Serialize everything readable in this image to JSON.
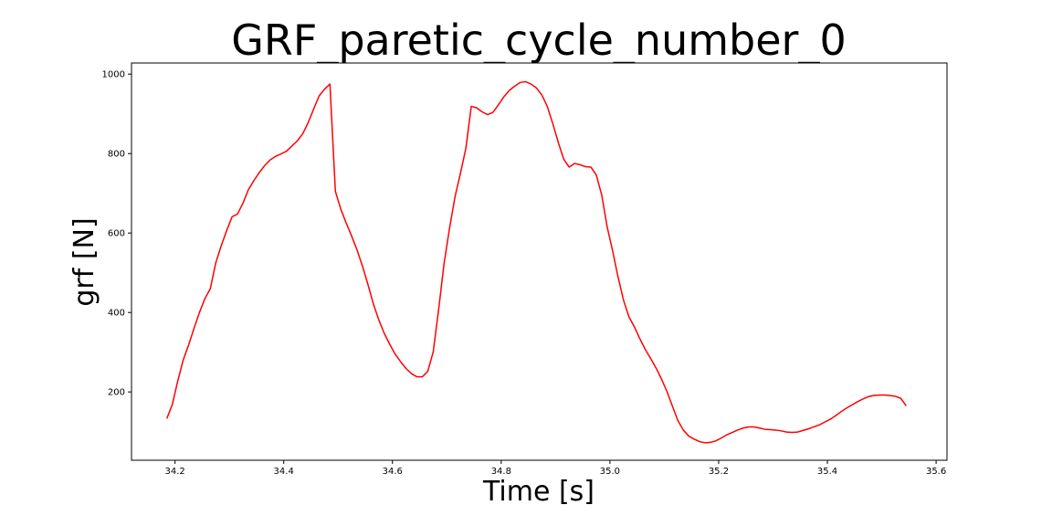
{
  "chart_data": {
    "type": "line",
    "title": "GRF_paretic_cycle_number_0",
    "xlabel": "Time [s]",
    "ylabel": "grf [N]",
    "xlim": [
      34.12,
      35.62
    ],
    "ylim": [
      28,
      1028
    ],
    "x_ticks": [
      34.2,
      34.4,
      34.6,
      34.8,
      35.0,
      35.2,
      35.4,
      35.6
    ],
    "x_tick_labels": [
      "34.2",
      "34.4",
      "34.6",
      "34.8",
      "35.0",
      "35.2",
      "35.4",
      "35.6"
    ],
    "y_ticks": [
      200,
      400,
      600,
      800,
      1000
    ],
    "y_tick_labels": [
      "200",
      "400",
      "600",
      "800",
      "1000"
    ],
    "grid": false,
    "series": [
      {
        "color": "#ff0000",
        "x": [
          34.185,
          34.195,
          34.205,
          34.215,
          34.225,
          34.235,
          34.245,
          34.255,
          34.265,
          34.275,
          34.285,
          34.295,
          34.305,
          34.315,
          34.325,
          34.335,
          34.345,
          34.355,
          34.365,
          34.375,
          34.385,
          34.395,
          34.405,
          34.415,
          34.425,
          34.435,
          34.445,
          34.455,
          34.465,
          34.475,
          34.485,
          34.495,
          34.505,
          34.515,
          34.525,
          34.535,
          34.545,
          34.555,
          34.565,
          34.575,
          34.585,
          34.595,
          34.605,
          34.615,
          34.625,
          34.635,
          34.645,
          34.655,
          34.665,
          34.675,
          34.685,
          34.695,
          34.705,
          34.715,
          34.725,
          34.735,
          34.745,
          34.755,
          34.765,
          34.775,
          34.785,
          34.795,
          34.805,
          34.815,
          34.825,
          34.835,
          34.845,
          34.855,
          34.865,
          34.875,
          34.885,
          34.895,
          34.905,
          34.915,
          34.925,
          34.935,
          34.945,
          34.955,
          34.965,
          34.975,
          34.985,
          34.995,
          35.005,
          35.015,
          35.025,
          35.035,
          35.045,
          35.055,
          35.065,
          35.075,
          35.085,
          35.095,
          35.105,
          35.115,
          35.125,
          35.135,
          35.145,
          35.155,
          35.165,
          35.175,
          35.185,
          35.195,
          35.205,
          35.215,
          35.225,
          35.235,
          35.245,
          35.255,
          35.265,
          35.275,
          35.285,
          35.295,
          35.305,
          35.315,
          35.325,
          35.335,
          35.345,
          35.355,
          35.365,
          35.375,
          35.385,
          35.395,
          35.405,
          35.415,
          35.425,
          35.435,
          35.445,
          35.455,
          35.465,
          35.475,
          35.485,
          35.495,
          35.505,
          35.515,
          35.525,
          35.535,
          35.545
        ],
        "y": [
          133,
          168,
          227,
          280,
          318,
          360,
          400,
          435,
          460,
          525,
          568,
          606,
          641,
          648,
          675,
          709,
          732,
          752,
          770,
          784,
          793,
          799,
          806,
          819,
          832,
          850,
          878,
          912,
          945,
          962,
          975,
          705,
          660,
          625,
          592,
          557,
          516,
          470,
          421,
          381,
          347,
          320,
          295,
          276,
          259,
          246,
          238,
          238,
          252,
          301,
          408,
          524,
          612,
          691,
          750,
          813,
          919,
          915,
          905,
          898,
          904,
          923,
          943,
          959,
          970,
          979,
          981,
          975,
          965,
          947,
          918,
          875,
          828,
          786,
          766,
          775,
          772,
          767,
          766,
          746,
          695,
          615,
          555,
          489,
          431,
          389,
          364,
          334,
          307,
          284,
          260,
          232,
          201,
          164,
          128,
          104,
          89,
          81,
          75,
          72,
          73,
          77,
          84,
          92,
          98,
          104,
          109,
          112,
          112,
          109,
          106,
          105,
          104,
          102,
          99,
          98,
          99,
          103,
          107,
          112,
          117,
          124,
          131,
          140,
          150,
          159,
          167,
          175,
          182,
          188,
          191,
          192,
          192,
          191,
          189,
          184,
          165
        ]
      }
    ]
  }
}
